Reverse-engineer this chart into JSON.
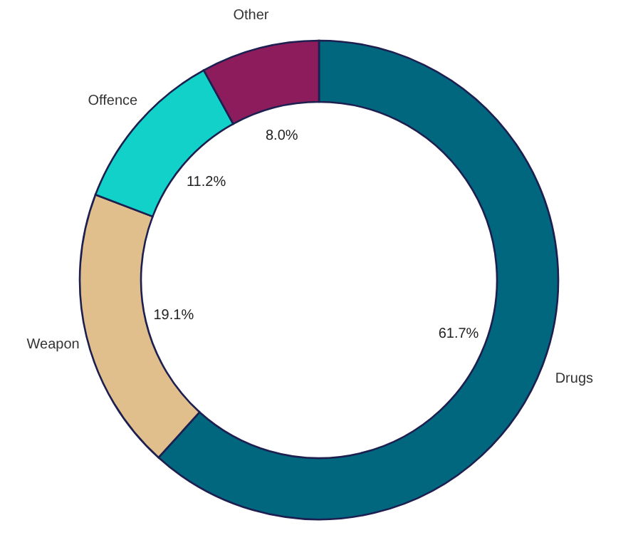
{
  "chart_data": {
    "type": "donut",
    "categories": [
      "Drugs",
      "Weapon",
      "Offence",
      "Other"
    ],
    "values": [
      61.7,
      19.1,
      11.2,
      8.0
    ],
    "colors": [
      "#00677f",
      "#e0bf8c",
      "#12d1c8",
      "#8c1c5c"
    ],
    "value_labels": [
      "61.7%",
      "19.1%",
      "11.2%",
      "8.0%"
    ]
  }
}
